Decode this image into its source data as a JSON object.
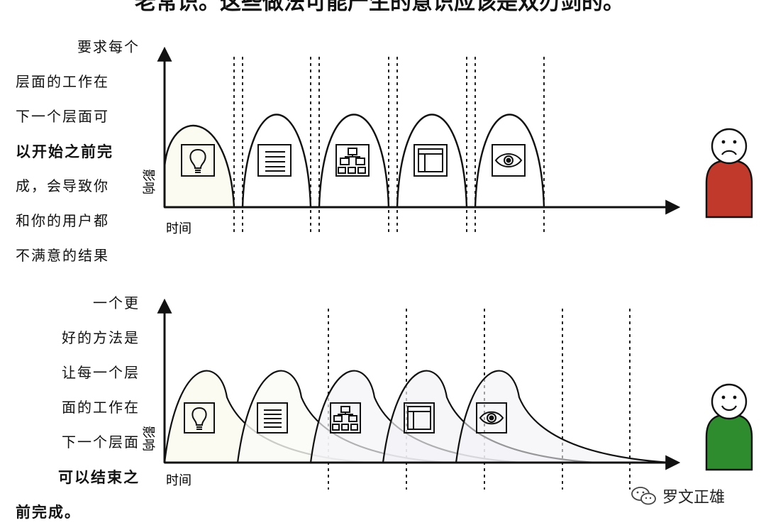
{
  "top_caption": "老常识。这些做法可能产生的意识应该是双刃剑的。",
  "top_panel": {
    "text_lines": [
      {
        "t": "要求每个",
        "align": "right",
        "bold": false
      },
      {
        "t": "层面的工作在",
        "align": "left",
        "bold": false
      },
      {
        "t": "下一个层面可",
        "align": "left",
        "bold": false
      },
      {
        "t": "以开始之前完",
        "align": "left",
        "bold": true
      },
      {
        "t": "成，会导致你",
        "align": "left",
        "bold": false
      },
      {
        "t": "和你的用户都",
        "align": "left",
        "bold": false
      },
      {
        "t": "不满意的结果",
        "align": "left",
        "bold": false
      }
    ],
    "y_axis_label": "影响",
    "x_axis_label": "时间",
    "icons": [
      "lightbulb-icon",
      "list-icon",
      "sitemap-icon",
      "layout-icon",
      "eye-icon"
    ],
    "user_mood": "unhappy",
    "user_color": "#c0392b"
  },
  "bottom_panel": {
    "text_lines": [
      {
        "t": "一个更",
        "align": "right",
        "bold": false
      },
      {
        "t": "好的方法是",
        "align": "right",
        "bold": false
      },
      {
        "t": "让每一个层",
        "align": "right",
        "bold": false
      },
      {
        "t": "面的工作在",
        "align": "right",
        "bold": false
      },
      {
        "t": "下一个层面",
        "align": "right",
        "bold": false
      },
      {
        "t": "可以结束之",
        "align": "right",
        "bold": true
      },
      {
        "t": "前完成。",
        "align": "left",
        "bold": true
      }
    ],
    "y_axis_label": "影响",
    "x_axis_label": "时间",
    "icons": [
      "lightbulb-icon",
      "list-icon",
      "sitemap-icon",
      "layout-icon",
      "eye-icon"
    ],
    "user_mood": "happy",
    "user_color": "#2e8b2e"
  },
  "watermark": "罗文正雄"
}
